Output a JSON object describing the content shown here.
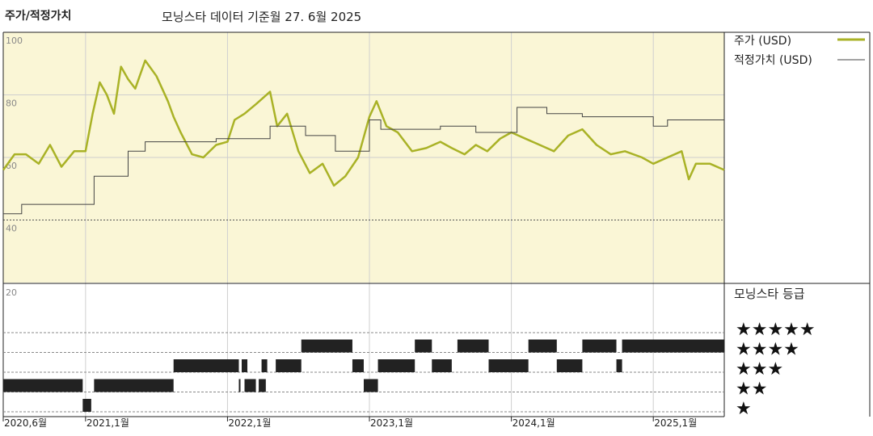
{
  "header": {
    "title": "주가/적정가치",
    "subtitle": "모닝스타 데이터 기준월 27. 6월 2025"
  },
  "legend": {
    "price": "주가 (USD)",
    "fair_value": "적정가치 (USD)",
    "rating_title": "모닝스타 등급"
  },
  "colors": {
    "price_line": "#a9b226",
    "fair_value_line": "#444444",
    "plot_bg": "#faf6d6",
    "rating_bar": "#222222"
  },
  "chart_data": {
    "type": "line",
    "x_tick_labels": [
      "2020,6월",
      "2021,1월",
      "2022,1월",
      "2023,1월",
      "2024,1월",
      "2025,1월"
    ],
    "x_tick_values": [
      2020.42,
      2021.0,
      2022.0,
      2023.0,
      2024.0,
      2025.0
    ],
    "xlim": [
      2020.42,
      2025.5
    ],
    "y_tick_labels": [
      "100",
      "80",
      "60",
      "40",
      "20"
    ],
    "y_tick_values": [
      100,
      80,
      60,
      40,
      20
    ],
    "ylim": [
      20,
      100
    ],
    "grid": true,
    "series": [
      {
        "name": "주가 (USD)",
        "x": [
          2020.42,
          2020.5,
          2020.58,
          2020.67,
          2020.75,
          2020.83,
          2020.92,
          2021.0,
          2021.05,
          2021.1,
          2021.15,
          2021.2,
          2021.25,
          2021.3,
          2021.35,
          2021.42,
          2021.5,
          2021.58,
          2021.62,
          2021.67,
          2021.75,
          2021.83,
          2021.92,
          2022.0,
          2022.05,
          2022.12,
          2022.2,
          2022.3,
          2022.35,
          2022.42,
          2022.5,
          2022.58,
          2022.67,
          2022.75,
          2022.83,
          2022.92,
          2023.0,
          2023.05,
          2023.12,
          2023.2,
          2023.3,
          2023.4,
          2023.5,
          2023.58,
          2023.67,
          2023.75,
          2023.83,
          2023.92,
          2024.0,
          2024.1,
          2024.2,
          2024.3,
          2024.4,
          2024.5,
          2024.6,
          2024.7,
          2024.8,
          2024.92,
          2025.0,
          2025.1,
          2025.2,
          2025.25,
          2025.3,
          2025.4,
          2025.5
        ],
        "y": [
          56,
          61,
          61,
          58,
          64,
          57,
          62,
          62,
          74,
          84,
          80,
          74,
          89,
          85,
          82,
          91,
          86,
          78,
          73,
          68,
          61,
          60,
          64,
          65,
          72,
          74,
          77,
          81,
          70,
          74,
          62,
          55,
          58,
          51,
          54,
          60,
          73,
          78,
          70,
          68,
          62,
          63,
          65,
          63,
          61,
          64,
          62,
          66,
          68,
          66,
          64,
          62,
          67,
          69,
          64,
          61,
          62,
          60,
          58,
          60,
          62,
          53,
          58,
          58,
          56
        ]
      },
      {
        "name": "적정가치 (USD)",
        "x": [
          2020.42,
          2020.54,
          2020.55,
          2021.0,
          2021.06,
          2021.3,
          2021.42,
          2021.75,
          2021.92,
          2022.25,
          2022.3,
          2022.42,
          2022.55,
          2022.75,
          2022.76,
          2022.98,
          2023.0,
          2023.08,
          2023.25,
          2023.5,
          2023.75,
          2024.0,
          2024.04,
          2024.25,
          2024.5,
          2024.92,
          2025.0,
          2025.1,
          2025.5
        ],
        "y": [
          42,
          42,
          45,
          45,
          54,
          62,
          65,
          65,
          66,
          66,
          70,
          70,
          67,
          67,
          62,
          62,
          72,
          69,
          69,
          70,
          68,
          68,
          76,
          74,
          73,
          73,
          70,
          72,
          72
        ]
      }
    ]
  },
  "rating_data": {
    "labels": [
      "★★★★★",
      "★★★★",
      "★★★",
      "★★",
      "★"
    ],
    "levels": [
      5,
      4,
      3,
      2,
      1
    ],
    "segments": [
      {
        "start": 2020.42,
        "end": 2020.98,
        "stars": 2
      },
      {
        "start": 2020.98,
        "end": 2021.04,
        "stars": 1
      },
      {
        "start": 2021.06,
        "end": 2021.62,
        "stars": 2
      },
      {
        "start": 2021.62,
        "end": 2022.08,
        "stars": 3
      },
      {
        "start": 2022.1,
        "end": 2022.14,
        "stars": 3
      },
      {
        "start": 2022.08,
        "end": 2022.09,
        "stars": 2
      },
      {
        "start": 2022.12,
        "end": 2022.2,
        "stars": 2
      },
      {
        "start": 2022.24,
        "end": 2022.28,
        "stars": 3
      },
      {
        "start": 2022.34,
        "end": 2022.52,
        "stars": 3
      },
      {
        "start": 2022.22,
        "end": 2022.27,
        "stars": 2
      },
      {
        "start": 2022.52,
        "end": 2022.88,
        "stars": 4
      },
      {
        "start": 2022.88,
        "end": 2022.96,
        "stars": 3
      },
      {
        "start": 2022.96,
        "end": 2023.06,
        "stars": 2
      },
      {
        "start": 2023.06,
        "end": 2023.32,
        "stars": 3
      },
      {
        "start": 2023.32,
        "end": 2023.44,
        "stars": 4
      },
      {
        "start": 2023.44,
        "end": 2023.58,
        "stars": 3
      },
      {
        "start": 2023.62,
        "end": 2023.84,
        "stars": 4
      },
      {
        "start": 2023.84,
        "end": 2024.12,
        "stars": 3
      },
      {
        "start": 2024.12,
        "end": 2024.32,
        "stars": 4
      },
      {
        "start": 2024.32,
        "end": 2024.5,
        "stars": 3
      },
      {
        "start": 2024.5,
        "end": 2024.74,
        "stars": 4
      },
      {
        "start": 2024.74,
        "end": 2024.78,
        "stars": 3
      },
      {
        "start": 2024.78,
        "end": 2025.5,
        "stars": 4
      }
    ]
  }
}
